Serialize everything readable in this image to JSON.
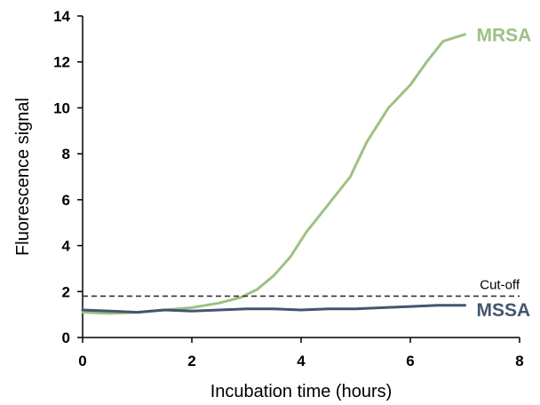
{
  "chart_data": {
    "type": "line",
    "title": "",
    "xlabel": "Incubation time (hours)",
    "ylabel": "Fluorescence signal",
    "xlim": [
      0,
      8
    ],
    "ylim": [
      0,
      14
    ],
    "x_ticks": [
      "0",
      "2",
      "4",
      "6",
      "8"
    ],
    "y_ticks": [
      "0",
      "2",
      "4",
      "6",
      "8",
      "10",
      "12",
      "14"
    ],
    "grid": false,
    "legend": "none",
    "series": [
      {
        "name": "MRSA",
        "color": "#9dc183",
        "x": [
          0,
          0.5,
          1.0,
          1.5,
          2.0,
          2.5,
          2.9,
          3.2,
          3.5,
          3.8,
          4.1,
          4.5,
          4.9,
          5.2,
          5.6,
          6.0,
          6.3,
          6.6,
          7.0
        ],
        "y": [
          1.1,
          1.05,
          1.1,
          1.2,
          1.3,
          1.5,
          1.75,
          2.1,
          2.7,
          3.5,
          4.6,
          5.8,
          7.0,
          8.5,
          10.0,
          11.0,
          12.0,
          12.9,
          13.2
        ]
      },
      {
        "name": "MSSA",
        "color": "#44556f",
        "x": [
          0,
          0.5,
          1.0,
          1.5,
          2.0,
          2.5,
          3.0,
          3.5,
          4.0,
          4.5,
          5.0,
          5.5,
          6.0,
          6.5,
          7.0
        ],
        "y": [
          1.2,
          1.15,
          1.1,
          1.2,
          1.15,
          1.2,
          1.25,
          1.25,
          1.2,
          1.25,
          1.25,
          1.3,
          1.35,
          1.4,
          1.4
        ]
      }
    ],
    "annotations": [
      {
        "text": "Cut-off",
        "y": 1.8,
        "style": "dashed",
        "color": "#333333"
      }
    ]
  }
}
